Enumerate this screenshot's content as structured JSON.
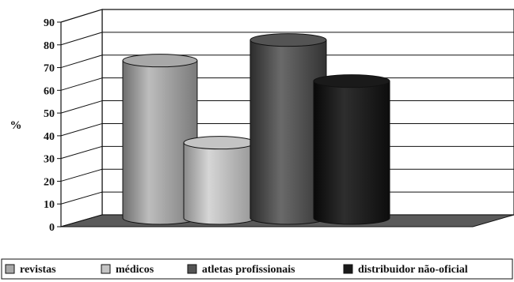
{
  "chart_data": {
    "type": "bar",
    "style": "3d-cylinder",
    "categories": [
      "revistas",
      "médicos",
      "atletas profissionais",
      "distribuidor não-oficial"
    ],
    "values": [
      69,
      33,
      78,
      60
    ],
    "ylabel": "%",
    "ylim": [
      0,
      90
    ],
    "yticks": [
      "0",
      "10",
      "20",
      "30",
      "40",
      "50",
      "60",
      "70",
      "80",
      "90"
    ],
    "grid": true,
    "legend_position": "bottom",
    "colors": [
      "#a8a8a8",
      "#c4c4c4",
      "#545454",
      "#1a1a1a"
    ]
  }
}
